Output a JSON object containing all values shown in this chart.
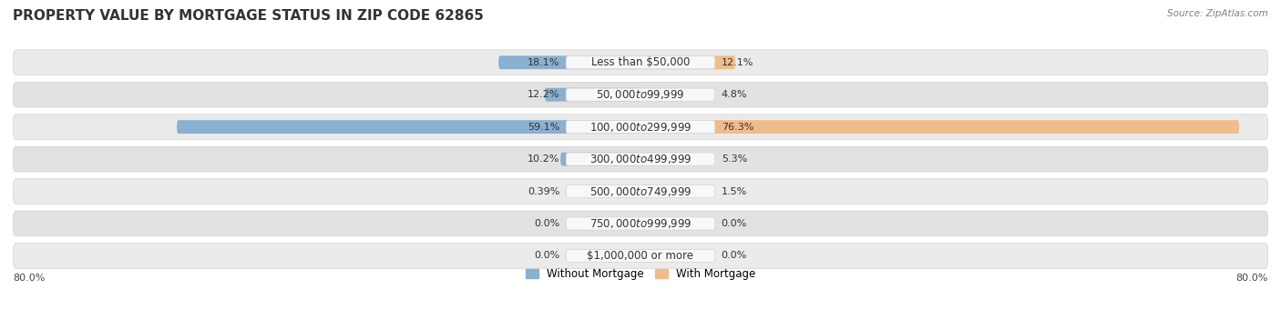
{
  "title": "PROPERTY VALUE BY MORTGAGE STATUS IN ZIP CODE 62865",
  "source": "Source: ZipAtlas.com",
  "categories": [
    "Less than $50,000",
    "$50,000 to $99,999",
    "$100,000 to $299,999",
    "$300,000 to $499,999",
    "$500,000 to $749,999",
    "$750,000 to $999,999",
    "$1,000,000 or more"
  ],
  "without_mortgage": [
    18.1,
    12.2,
    59.1,
    10.2,
    0.39,
    0.0,
    0.0
  ],
  "with_mortgage": [
    12.1,
    4.8,
    76.3,
    5.3,
    1.5,
    0.0,
    0.0
  ],
  "without_mortgage_color": "#8ab0d0",
  "with_mortgage_color": "#f0bc8c",
  "row_colors": [
    "#ebebeb",
    "#e2e2e2",
    "#ebebeb",
    "#e2e2e2",
    "#ebebeb",
    "#e2e2e2",
    "#ebebeb"
  ],
  "label_bg_color": "#f7f7f7",
  "max_value": 80.0,
  "title_fontsize": 11,
  "label_fontsize": 8.5,
  "value_fontsize": 8,
  "tick_fontsize": 8,
  "without_mortgage_label": "Without Mortgage",
  "with_mortgage_label": "With Mortgage",
  "axis_label_left": "80.0%",
  "axis_label_right": "80.0%",
  "label_values_wm": [
    "18.1%",
    "12.2%",
    "59.1%",
    "10.2%",
    "0.39%",
    "0.0%",
    "0.0%"
  ],
  "label_values_m": [
    "12.1%",
    "4.8%",
    "76.3%",
    "5.3%",
    "1.5%",
    "0.0%",
    "0.0%"
  ]
}
